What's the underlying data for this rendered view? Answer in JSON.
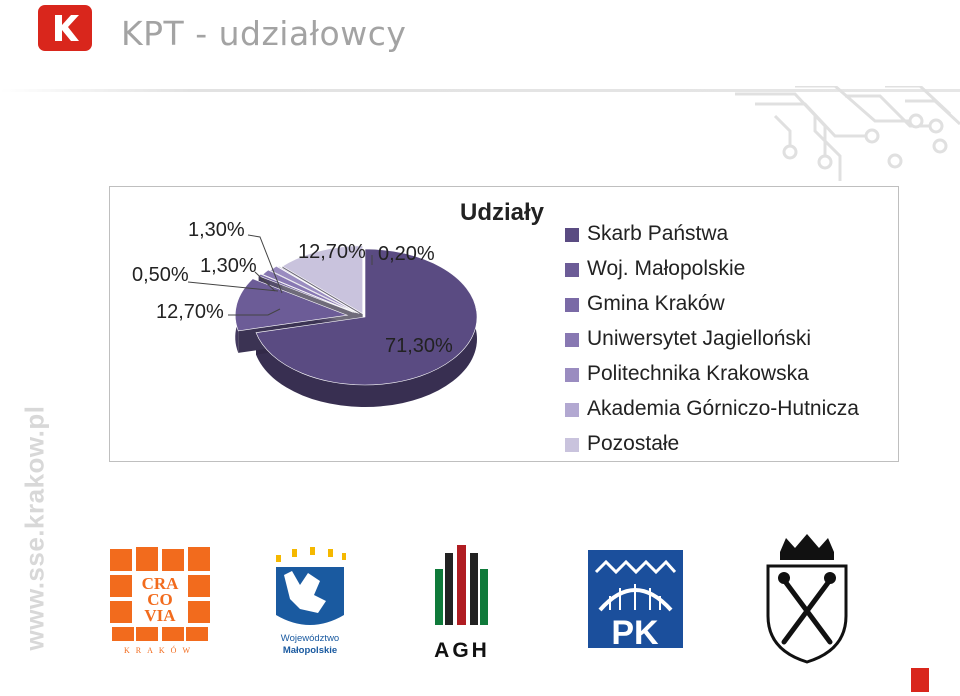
{
  "header": {
    "title": "KPT - udziałowcy",
    "logo_letter": "K"
  },
  "side_url": "www.sse.krakow.pl",
  "chart_data": {
    "type": "pie",
    "title": "Udziały",
    "categories": [
      "Skarb Państwa",
      "Woj. Małopolskie",
      "Gmina Kraków",
      "Uniwersytet Jagielloński",
      "Politechnika Krakowska",
      "Akademia Górniczo-Hutnicza",
      "Pozostałe"
    ],
    "values": [
      71.3,
      12.7,
      0.5,
      1.3,
      1.3,
      0.2,
      12.7
    ],
    "labels": [
      "71,30%",
      "12,70%",
      "0,50%",
      "1,30%",
      "1,30%",
      "0,20%",
      "12,70%"
    ],
    "colors": [
      "#5a4b82",
      "#6c5c97",
      "#7a6aa6",
      "#8878b2",
      "#9a8cc0",
      "#b2a8d1",
      "#c9c3dd"
    ],
    "legend_position": "right"
  },
  "partners": [
    {
      "name": "Cracovia Kraków",
      "text_lines": [
        "CRA",
        "CO",
        "VIA"
      ],
      "caption": "KRAKÓW"
    },
    {
      "name": "Województwo Małopolskie",
      "caption_lines": [
        "Województwo",
        "Małopolskie"
      ]
    },
    {
      "name": "AGH",
      "caption": "AGH"
    },
    {
      "name": "Politechnika Krakowska",
      "caption": "PK"
    },
    {
      "name": "Uniwersytet Jagielloński"
    }
  ]
}
